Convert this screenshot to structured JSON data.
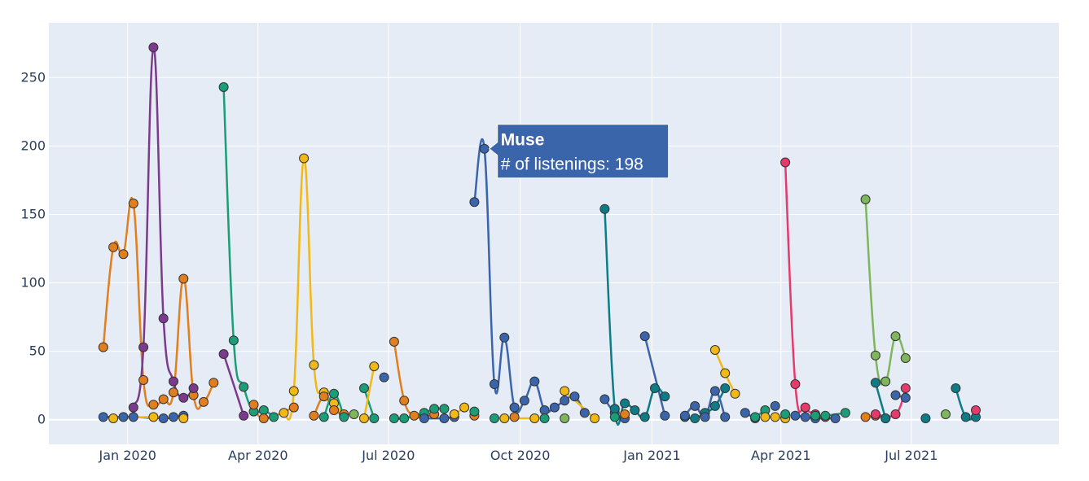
{
  "chart_data": {
    "type": "line",
    "title": "",
    "xlabel": "",
    "ylabel": "",
    "ylim": [
      -18,
      290
    ],
    "xlim": [
      "2019-11-07",
      "2021-10-12"
    ],
    "yticks": [
      0,
      50,
      100,
      150,
      200,
      250
    ],
    "xticks": [
      {
        "date": "2020-01-01",
        "label": "Jan 2020"
      },
      {
        "date": "2020-04-01",
        "label": "Apr 2020"
      },
      {
        "date": "2020-07-01",
        "label": "Jul 2020"
      },
      {
        "date": "2020-10-01",
        "label": "Oct 2020"
      },
      {
        "date": "2021-01-01",
        "label": "Jan 2021"
      },
      {
        "date": "2021-04-01",
        "label": "Apr 2021"
      },
      {
        "date": "2021-07-01",
        "label": "Jul 2021"
      }
    ],
    "grid": true,
    "legend": "none",
    "colors": {
      "background": "#e5ecf6",
      "grid": "#ffffff",
      "tick_text": "#2a3f5f",
      "marker_edge": "#333333",
      "tooltip": "#3b65ab"
    },
    "series": [
      {
        "color": "#e17e1d",
        "points": [
          [
            "2019-12-15",
            53
          ],
          [
            "2019-12-22",
            126
          ],
          [
            "2019-12-29",
            121
          ],
          [
            "2020-01-05",
            158
          ],
          [
            "2020-01-12",
            29
          ],
          [
            "2020-01-19",
            11
          ],
          [
            "2020-01-26",
            15
          ],
          [
            "2020-02-02",
            20
          ],
          [
            "2020-02-09",
            103
          ],
          [
            "2020-02-16",
            18
          ],
          [
            "2020-02-23",
            13
          ],
          [
            "2020-03-01",
            27
          ]
        ]
      },
      {
        "color": "#7b3a8c",
        "points": [
          [
            "2020-01-05",
            9
          ],
          [
            "2020-01-12",
            53
          ],
          [
            "2020-01-19",
            272
          ],
          [
            "2020-01-26",
            74
          ],
          [
            "2020-02-02",
            28
          ],
          [
            "2020-02-09",
            16
          ],
          [
            "2020-02-16",
            23
          ]
        ]
      },
      {
        "color": "#3b65ab",
        "points": [
          [
            "2019-12-15",
            2
          ],
          [
            "2019-12-29",
            2
          ],
          [
            "2020-01-05",
            2
          ],
          [
            "2020-01-26",
            1
          ],
          [
            "2020-02-02",
            2
          ],
          [
            "2020-02-09",
            3
          ]
        ]
      },
      {
        "color": "#f1b816",
        "points": [
          [
            "2019-12-22",
            1
          ],
          [
            "2020-01-19",
            2
          ],
          [
            "2020-02-09",
            1
          ]
        ]
      },
      {
        "color": "#1b9e77",
        "points": [
          [
            "2020-03-08",
            243
          ],
          [
            "2020-03-15",
            58
          ],
          [
            "2020-03-22",
            24
          ],
          [
            "2020-03-29",
            6
          ],
          [
            "2020-04-05",
            7
          ],
          [
            "2020-04-12",
            2
          ]
        ]
      },
      {
        "color": "#7b3a8c",
        "points": [
          [
            "2020-03-08",
            48
          ],
          [
            "2020-03-22",
            3
          ]
        ]
      },
      {
        "color": "#e17e1d",
        "points": [
          [
            "2020-03-29",
            11
          ],
          [
            "2020-04-05",
            1
          ],
          [
            "2020-04-26",
            9
          ]
        ]
      },
      {
        "color": "#f1b816",
        "points": [
          [
            "2020-04-19",
            5
          ],
          [
            "2020-04-26",
            21
          ],
          [
            "2020-05-03",
            191
          ],
          [
            "2020-05-10",
            40
          ],
          [
            "2020-05-17",
            20
          ],
          [
            "2020-05-24",
            12
          ],
          [
            "2020-05-31",
            3
          ]
        ]
      },
      {
        "color": "#e17e1d",
        "points": [
          [
            "2020-05-10",
            3
          ],
          [
            "2020-05-17",
            17
          ],
          [
            "2020-05-24",
            7
          ],
          [
            "2020-05-31",
            4
          ]
        ]
      },
      {
        "color": "#1b9e77",
        "points": [
          [
            "2020-05-17",
            2
          ],
          [
            "2020-05-24",
            19
          ],
          [
            "2020-05-31",
            2
          ]
        ]
      },
      {
        "color": "#7fb65d",
        "points": [
          [
            "2020-06-07",
            4
          ]
        ]
      },
      {
        "color": "#1b9e77",
        "points": [
          [
            "2020-06-14",
            23
          ],
          [
            "2020-06-21",
            1
          ]
        ]
      },
      {
        "color": "#f1b816",
        "points": [
          [
            "2020-06-14",
            1
          ],
          [
            "2020-06-21",
            39
          ]
        ]
      },
      {
        "color": "#3b65ab",
        "points": [
          [
            "2020-06-28",
            31
          ]
        ]
      },
      {
        "color": "#e17e1d",
        "points": [
          [
            "2020-07-05",
            57
          ],
          [
            "2020-07-12",
            14
          ],
          [
            "2020-07-19",
            3
          ],
          [
            "2020-07-26",
            2
          ],
          [
            "2020-08-02",
            4
          ]
        ]
      },
      {
        "color": "#1b9e77",
        "points": [
          [
            "2020-07-05",
            1
          ],
          [
            "2020-07-12",
            1
          ],
          [
            "2020-07-26",
            5
          ],
          [
            "2020-08-02",
            8
          ],
          [
            "2020-08-09",
            8
          ]
        ]
      },
      {
        "color": "#3b65ab",
        "points": [
          [
            "2020-07-26",
            1
          ],
          [
            "2020-08-09",
            1
          ],
          [
            "2020-08-16",
            2
          ]
        ]
      },
      {
        "color": "#f1b816",
        "points": [
          [
            "2020-08-16",
            4
          ],
          [
            "2020-08-23",
            9
          ]
        ]
      },
      {
        "color": "#e17e1d",
        "points": [
          [
            "2020-08-30",
            3
          ]
        ]
      },
      {
        "color": "#1b9e77",
        "points": [
          [
            "2020-08-30",
            6
          ]
        ]
      },
      {
        "color": "#3b65ab",
        "name": "Muse",
        "points": [
          [
            "2020-08-30",
            159
          ],
          [
            "2020-09-06",
            198
          ],
          [
            "2020-09-13",
            26
          ],
          [
            "2020-09-20",
            60
          ],
          [
            "2020-09-27",
            9
          ],
          [
            "2020-10-04",
            14
          ],
          [
            "2020-10-11",
            28
          ],
          [
            "2020-10-18",
            7
          ],
          [
            "2020-10-25",
            9
          ],
          [
            "2020-11-01",
            14
          ],
          [
            "2020-11-08",
            17
          ],
          [
            "2020-11-15",
            5
          ]
        ]
      },
      {
        "color": "#1b9e77",
        "points": [
          [
            "2020-09-13",
            1
          ]
        ]
      },
      {
        "color": "#f1b816",
        "points": [
          [
            "2020-09-20",
            1
          ],
          [
            "2020-10-11",
            1
          ]
        ]
      },
      {
        "color": "#e17e1d",
        "points": [
          [
            "2020-09-27",
            2
          ]
        ]
      },
      {
        "color": "#1b9e77",
        "points": [
          [
            "2020-10-18",
            1
          ]
        ]
      },
      {
        "color": "#f1b816",
        "points": [
          [
            "2020-11-01",
            21
          ],
          [
            "2020-11-22",
            1
          ]
        ]
      },
      {
        "color": "#7fb65d",
        "points": [
          [
            "2020-11-01",
            1
          ]
        ]
      },
      {
        "color": "#3b65ab",
        "points": [
          [
            "2020-11-29",
            15
          ],
          [
            "2020-12-06",
            5
          ],
          [
            "2020-12-13",
            1
          ]
        ]
      },
      {
        "color": "#0e7c86",
        "points": [
          [
            "2020-11-29",
            154
          ],
          [
            "2020-12-06",
            8
          ],
          [
            "2020-12-13",
            12
          ],
          [
            "2020-12-20",
            7
          ],
          [
            "2020-12-27",
            2
          ],
          [
            "2021-01-03",
            23
          ],
          [
            "2021-01-10",
            17
          ]
        ]
      },
      {
        "color": "#1b9e77",
        "points": [
          [
            "2020-12-06",
            2
          ]
        ]
      },
      {
        "color": "#e17e1d",
        "points": [
          [
            "2020-12-13",
            4
          ]
        ]
      },
      {
        "color": "#3b65ab",
        "points": [
          [
            "2020-12-27",
            61
          ],
          [
            "2021-01-10",
            3
          ]
        ]
      },
      {
        "color": "#0e7c86",
        "points": [
          [
            "2021-01-24",
            2
          ],
          [
            "2021-01-31",
            1
          ],
          [
            "2021-02-07",
            5
          ],
          [
            "2021-02-14",
            10
          ],
          [
            "2021-02-21",
            23
          ]
        ]
      },
      {
        "color": "#3b65ab",
        "points": [
          [
            "2021-01-24",
            3
          ],
          [
            "2021-01-31",
            10
          ],
          [
            "2021-02-07",
            2
          ],
          [
            "2021-02-14",
            21
          ],
          [
            "2021-02-21",
            2
          ]
        ]
      },
      {
        "color": "#f1b816",
        "points": [
          [
            "2021-02-14",
            51
          ],
          [
            "2021-02-21",
            34
          ],
          [
            "2021-02-28",
            19
          ]
        ]
      },
      {
        "color": "#3b65ab",
        "points": [
          [
            "2021-03-07",
            5
          ],
          [
            "2021-03-14",
            1
          ]
        ]
      },
      {
        "color": "#1b9e77",
        "points": [
          [
            "2021-03-14",
            2
          ],
          [
            "2021-03-21",
            7
          ]
        ]
      },
      {
        "color": "#f1b816",
        "points": [
          [
            "2021-03-21",
            2
          ],
          [
            "2021-03-28",
            2
          ],
          [
            "2021-04-04",
            1
          ]
        ]
      },
      {
        "color": "#3b65ab",
        "points": [
          [
            "2021-03-28",
            10
          ]
        ]
      },
      {
        "color": "#1b9e77",
        "points": [
          [
            "2021-04-04",
            4
          ]
        ]
      },
      {
        "color": "#e43a6c",
        "points": [
          [
            "2021-04-04",
            188
          ],
          [
            "2021-04-11",
            26
          ],
          [
            "2021-04-18",
            9
          ],
          [
            "2021-04-25",
            4
          ],
          [
            "2021-05-02",
            2
          ]
        ]
      },
      {
        "color": "#3b65ab",
        "points": [
          [
            "2021-04-11",
            3
          ],
          [
            "2021-04-18",
            2
          ],
          [
            "2021-04-25",
            1
          ],
          [
            "2021-05-09",
            1
          ]
        ]
      },
      {
        "color": "#1b9e77",
        "points": [
          [
            "2021-04-25",
            3
          ],
          [
            "2021-05-02",
            3
          ],
          [
            "2021-05-16",
            5
          ]
        ]
      },
      {
        "color": "#e17e1d",
        "points": [
          [
            "2021-05-30",
            2
          ],
          [
            "2021-06-06",
            3
          ],
          [
            "2021-06-13",
            1
          ]
        ]
      },
      {
        "color": "#7fb65d",
        "points": [
          [
            "2021-05-30",
            161
          ],
          [
            "2021-06-06",
            47
          ],
          [
            "2021-06-13",
            28
          ],
          [
            "2021-06-20",
            61
          ],
          [
            "2021-06-27",
            45
          ]
        ]
      },
      {
        "color": "#0e7c86",
        "points": [
          [
            "2021-06-06",
            27
          ],
          [
            "2021-06-13",
            1
          ]
        ]
      },
      {
        "color": "#e43a6c",
        "points": [
          [
            "2021-06-06",
            4
          ],
          [
            "2021-06-20",
            4
          ],
          [
            "2021-06-27",
            23
          ]
        ]
      },
      {
        "color": "#3b65ab",
        "points": [
          [
            "2021-06-20",
            18
          ],
          [
            "2021-06-27",
            16
          ]
        ]
      },
      {
        "color": "#0e7c86",
        "points": [
          [
            "2021-07-11",
            1
          ]
        ]
      },
      {
        "color": "#7fb65d",
        "points": [
          [
            "2021-07-25",
            4
          ]
        ]
      },
      {
        "color": "#0e7c86",
        "points": [
          [
            "2021-08-01",
            23
          ],
          [
            "2021-08-08",
            2
          ],
          [
            "2021-08-15",
            2
          ]
        ]
      },
      {
        "color": "#e43a6c",
        "points": [
          [
            "2021-08-15",
            7
          ]
        ]
      }
    ],
    "tooltip": {
      "series": "Muse",
      "date": "2020-09-06",
      "value": 198,
      "title": "Muse",
      "text": "# of listenings: 198"
    }
  }
}
